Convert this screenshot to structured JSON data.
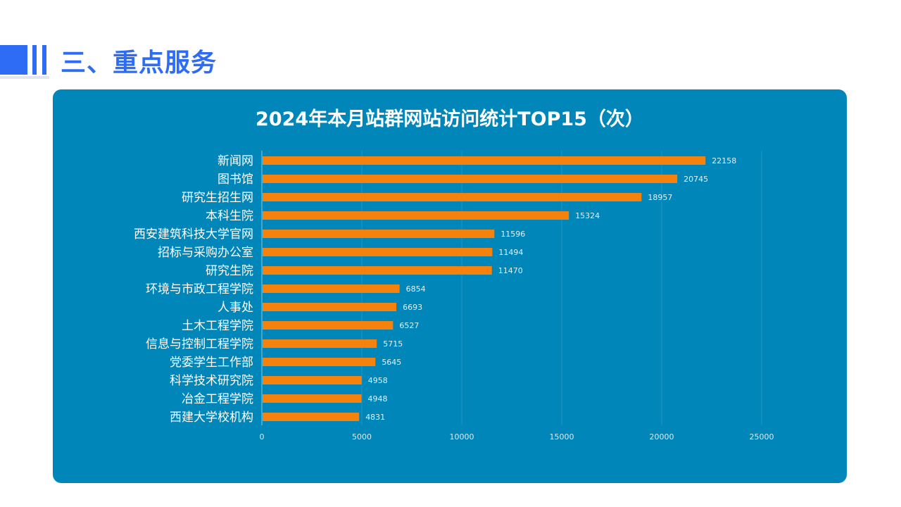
{
  "heading": {
    "title": "三、重点服务"
  },
  "colors": {
    "accent": "#2e6cf6",
    "panel": "#0086b8",
    "bar": "#f5820d",
    "text": "#ffffff"
  },
  "chart_data": {
    "type": "bar",
    "orientation": "horizontal",
    "title": "2024年本月站群网站访问统计TOP15（次）",
    "categories": [
      "新闻网",
      "图书馆",
      "研究生招生网",
      "本科生院",
      "西安建筑科技大学官网",
      "招标与采购办公室",
      "研究生院",
      "环境与市政工程学院",
      "人事处",
      "土木工程学院",
      "信息与控制工程学院",
      "党委学生工作部",
      "科学技术研究院",
      "冶金工程学院",
      "西建大学校机构"
    ],
    "values": [
      22158,
      20745,
      18957,
      15324,
      11596,
      11494,
      11470,
      6854,
      6693,
      6527,
      5715,
      5645,
      4958,
      4948,
      4831
    ],
    "xlim": [
      0,
      25000
    ],
    "xticks": [
      0,
      5000,
      10000,
      15000,
      20000,
      25000
    ],
    "grid": true,
    "data_labels": true
  }
}
